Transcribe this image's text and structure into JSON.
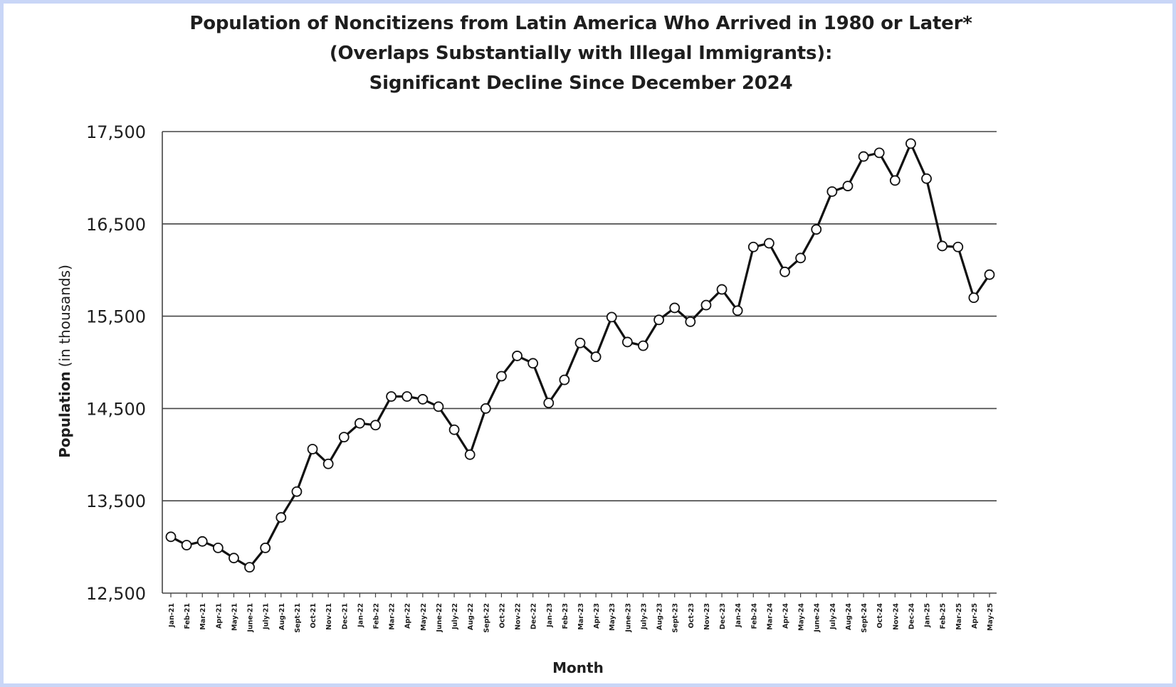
{
  "chart_data": {
    "type": "line",
    "title": [
      "Population of Noncitizens from Latin America Who Arrived in 1980 or Later*",
      "(Overlaps Substantially with Illegal Immigrants):",
      "Significant Decline Since December 2024"
    ],
    "xlabel": "Month",
    "ylabel": "Population",
    "ylabel_unit": "(in thousands)",
    "ylim": [
      12500,
      17500
    ],
    "yticks": [
      {
        "value": 12500,
        "label": "12,500"
      },
      {
        "value": 13500,
        "label": "13,500"
      },
      {
        "value": 14500,
        "label": "14,500"
      },
      {
        "value": 15500,
        "label": "15,500"
      },
      {
        "value": 16500,
        "label": "16,500"
      },
      {
        "value": 17500,
        "label": "17,500"
      }
    ],
    "grid": "horizontal",
    "categories": [
      "Jan-21",
      "Feb-21",
      "Mar-21",
      "Apr-21",
      "May-21",
      "June-21",
      "July-21",
      "Aug-21",
      "Sept-21",
      "Oct-21",
      "Nov-21",
      "Dec-21",
      "Jan-22",
      "Feb-22",
      "Mar-22",
      "Apr-22",
      "May-22",
      "June-22",
      "July-22",
      "Aug-22",
      "Sept-22",
      "Oct-22",
      "Nov-22",
      "Dec-22",
      "Jan-23",
      "Feb-23",
      "Mar-23",
      "Apr-23",
      "May-23",
      "June-23",
      "July-23",
      "Aug-23",
      "Sept-23",
      "Oct-23",
      "Nov-23",
      "Dec-23",
      "Jan-24",
      "Feb-24",
      "Mar-24",
      "Apr-24",
      "May-24",
      "June-24",
      "July-24",
      "Aug-24",
      "Sept-24",
      "Oct-24",
      "Nov-24",
      "Dec-24",
      "Jan-25",
      "Feb-25",
      "Mar-25",
      "Apr-25",
      "May-25"
    ],
    "values": [
      13110,
      13020,
      13060,
      12990,
      12880,
      12780,
      12990,
      13320,
      13600,
      14060,
      13900,
      14190,
      14340,
      14320,
      14630,
      14630,
      14600,
      14520,
      14270,
      14000,
      14500,
      14850,
      15070,
      14990,
      14560,
      14810,
      15210,
      15060,
      15490,
      15220,
      15180,
      15460,
      15590,
      15440,
      15620,
      15790,
      15560,
      16250,
      16290,
      15980,
      16130,
      16440,
      16850,
      16910,
      17230,
      17270,
      16970,
      17370,
      16990,
      16260,
      16250,
      15700,
      15950
    ]
  }
}
